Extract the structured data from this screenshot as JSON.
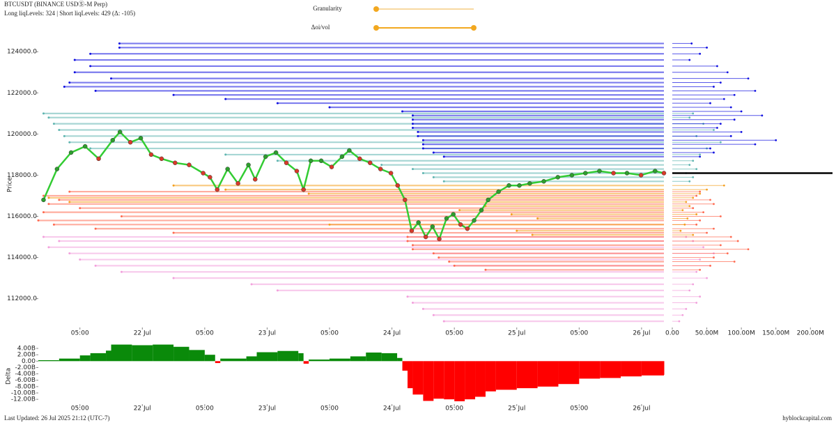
{
  "header": {
    "title": "BTCUSDT (BINANCE USDⓈ-M Perp)",
    "subtitle": "Long liqLevels: 324 | Short liqLevels: 429 (Δ: -105)"
  },
  "controls": [
    {
      "label": "Granularity"
    },
    {
      "label": "Δoi/vol"
    }
  ],
  "chart_data": [
    {
      "type": "line",
      "y_label": "Price",
      "color": "#33cc33",
      "up_color": "#2e9e2e",
      "down_color": "#d83a2a",
      "x": [
        5,
        7.6,
        10.3,
        13,
        15.6,
        18.3,
        19.7,
        21.7,
        23.7,
        25.7,
        27.7,
        30.3,
        33,
        35.7,
        37,
        38.4,
        40.4,
        42.4,
        44.4,
        45.7,
        47.7,
        49.7,
        51.7,
        53.7,
        55,
        56.4,
        58.4,
        60.4,
        62.4,
        63.8,
        65.8,
        67.8,
        69.8,
        71.8,
        73.1,
        74.5,
        75.8,
        77.1,
        78.5,
        79.8,
        81.1,
        82.5,
        83.8,
        85.2,
        86.5,
        87.8,
        89.2,
        90.5,
        92.5,
        94.5,
        96.5,
        98.5,
        101.2,
        103.9,
        106.6,
        109.2,
        111.9,
        114.6,
        117.2,
        119.9,
        122.6,
        124.3
      ],
      "values": [
        116800,
        118300,
        119100,
        119400,
        118800,
        119700,
        120100,
        119600,
        119800,
        119000,
        118800,
        118600,
        118500,
        118100,
        117900,
        117300,
        118300,
        117600,
        118500,
        117800,
        118900,
        119100,
        118600,
        118200,
        117300,
        118700,
        118700,
        118400,
        118900,
        119200,
        118800,
        118600,
        118300,
        118100,
        117500,
        116800,
        115300,
        115700,
        115000,
        115500,
        114900,
        115900,
        116100,
        115600,
        115400,
        115800,
        116300,
        116800,
        117200,
        117500,
        117500,
        117600,
        117700,
        117900,
        118000,
        118100,
        118200,
        118100,
        118100,
        118000,
        118200,
        118100
      ],
      "xlim": [
        4,
        124.3
      ],
      "ylim": [
        110600,
        124550
      ],
      "xticks": [
        {
          "value": 12,
          "label": "05:00"
        },
        {
          "value": 24,
          "label": "22 Jul"
        },
        {
          "value": 36,
          "label": "05:00"
        },
        {
          "value": 48,
          "label": "23 Jul"
        },
        {
          "value": 60,
          "label": "05:00"
        },
        {
          "value": 72,
          "label": "24 Jul"
        },
        {
          "value": 84,
          "label": "05:00"
        },
        {
          "value": 96,
          "label": "25 Jul"
        },
        {
          "value": 108,
          "label": "05:00"
        },
        {
          "value": 120,
          "label": "26 Jul"
        }
      ],
      "yticks": [
        {
          "value": 112000,
          "label": "112000.0"
        },
        {
          "value": 114000,
          "label": "114000.0"
        },
        {
          "value": 116000,
          "label": "116000.0"
        },
        {
          "value": 118000,
          "label": "118000.0"
        },
        {
          "value": 120000,
          "label": "120000.0"
        },
        {
          "value": 122000,
          "label": "122000.0"
        },
        {
          "value": 124000,
          "label": "124000.0"
        }
      ],
      "levels": [
        {
          "color": "#5fb5b0",
          "prices": [
            121000,
            120800,
            120500,
            120200,
            119900,
            119600,
            119300,
            119000,
            118700,
            118500,
            118300,
            118100,
            117900,
            117700
          ],
          "starts": [
            5,
            6,
            7,
            8,
            9,
            10,
            14,
            40,
            50,
            70,
            76,
            78,
            80,
            82
          ],
          "sizes": [
            30000000,
            25000000,
            45000000,
            60000000,
            35000000,
            70000000,
            50000000,
            40000000,
            30000000,
            25000000,
            35000000,
            20000000,
            30000000,
            25000000
          ]
        },
        {
          "color": "#1010e0",
          "prices": [
            124400,
            124200,
            123900,
            123600,
            123300,
            123000,
            122700,
            122500,
            122300,
            122100,
            121900,
            121700,
            121500,
            121300,
            121100,
            120900,
            120700,
            120500,
            120300,
            120100,
            119900,
            119700,
            119500,
            119300,
            119100,
            118900
          ],
          "starts": [
            19.6,
            19.6,
            14,
            11,
            14,
            11,
            18,
            10,
            9,
            15,
            30,
            40,
            50,
            60,
            74,
            76,
            76,
            76,
            76,
            77,
            77,
            78,
            78,
            78,
            80,
            82
          ],
          "sizes": [
            28000000,
            50000000,
            40000000,
            25000000,
            65000000,
            80000000,
            110000000,
            70000000,
            60000000,
            120000000,
            90000000,
            75000000,
            55000000,
            85000000,
            100000000,
            130000000,
            90000000,
            70000000,
            65000000,
            100000000,
            85000000,
            150000000,
            120000000,
            55000000,
            60000000,
            40000000
          ]
        },
        {
          "color": "#f2a0dc",
          "prices": [
            115000,
            114800,
            114500,
            114200,
            113900,
            113600,
            113300,
            113000,
            112700,
            112400,
            112100,
            111800,
            111500,
            111200,
            110900
          ],
          "starts": [
            5,
            8,
            6,
            10,
            12,
            15,
            20,
            30,
            45,
            50,
            75,
            76,
            78,
            80,
            82
          ],
          "sizes": [
            20000000,
            30000000,
            45000000,
            60000000,
            40000000,
            55000000,
            35000000,
            50000000,
            30000000,
            25000000,
            40000000,
            35000000,
            20000000,
            15000000,
            10000000
          ]
        },
        {
          "color": "#ff6a50",
          "prices": [
            117200,
            117000,
            116800,
            116600,
            116400,
            116200,
            116000,
            115800,
            115600,
            115400,
            115200,
            115000,
            114800,
            114600,
            114400,
            114200,
            114000,
            113800,
            113600,
            113400
          ],
          "starts": [
            10,
            5,
            8,
            6,
            12,
            5,
            20,
            4,
            7,
            15,
            30,
            75,
            75,
            76,
            76,
            80,
            81,
            83,
            84,
            90
          ],
          "sizes": [
            40000000,
            35000000,
            55000000,
            60000000,
            30000000,
            45000000,
            70000000,
            40000000,
            35000000,
            60000000,
            50000000,
            85000000,
            95000000,
            70000000,
            110000000,
            80000000,
            60000000,
            90000000,
            55000000,
            40000000
          ]
        },
        {
          "color": "#f4a020",
          "prices": [
            117500,
            117300,
            117100,
            116900,
            116700,
            116500,
            116300,
            116100,
            115900,
            115600,
            115300,
            115100
          ],
          "starts": [
            30,
            40,
            56,
            6,
            10,
            90,
            85,
            95,
            100,
            60,
            96,
            99
          ],
          "sizes": [
            75000000,
            50000000,
            40000000,
            30000000,
            20000000,
            25000000,
            15000000,
            35000000,
            22000000,
            18000000,
            12000000,
            30000000
          ]
        }
      ]
    },
    {
      "type": "bar",
      "xlim": [
        0,
        232000000
      ],
      "xticks": [
        {
          "value": 0,
          "label": "0.00"
        },
        {
          "value": 50000000,
          "label": "50.00M"
        },
        {
          "value": 100000000,
          "label": "100.00M"
        },
        {
          "value": 150000000,
          "label": "150.00M"
        },
        {
          "value": 200000000,
          "label": "200.00M"
        }
      ]
    },
    {
      "type": "area",
      "y_label": "Delta",
      "positive_color": "#0a8a0a",
      "negative_color": "#ff0000",
      "x": [
        4,
        8,
        12,
        14,
        17,
        18,
        22,
        26,
        30,
        33,
        36,
        38,
        39,
        44,
        46,
        50,
        54,
        55,
        56,
        60,
        64,
        67,
        70,
        73,
        74,
        75,
        76,
        78,
        80,
        82,
        84,
        86,
        88,
        90,
        92,
        96,
        100,
        104,
        108,
        112,
        116,
        120,
        124.3
      ],
      "values": [
        0.3,
        0.8,
        1.8,
        2.5,
        3.3,
        5.2,
        5.0,
        5.2,
        4.5,
        3.5,
        2.0,
        -0.6,
        0.8,
        1.5,
        2.8,
        3.2,
        2.5,
        -0.8,
        0.5,
        0.8,
        1.5,
        2.7,
        2.5,
        1.0,
        -3.0,
        -8.5,
        -10.5,
        -12.5,
        -11.8,
        -12.0,
        -12.6,
        -12.0,
        -11.2,
        -9.5,
        -9.0,
        -8.5,
        -8.0,
        -7.2,
        -5.5,
        -5.3,
        -4.8,
        -4.5,
        -4.3
      ],
      "xlim": [
        4,
        124.3
      ],
      "ylim": [
        -13.5,
        6.2
      ],
      "xticks": [
        {
          "value": 12,
          "label": "05:00"
        },
        {
          "value": 24,
          "label": "22 Jul"
        },
        {
          "value": 36,
          "label": "05:00"
        },
        {
          "value": 48,
          "label": "23 Jul"
        },
        {
          "value": 60,
          "label": "05:00"
        },
        {
          "value": 72,
          "label": "24 Jul"
        },
        {
          "value": 84,
          "label": "05:00"
        },
        {
          "value": 96,
          "label": "25 Jul"
        },
        {
          "value": 108,
          "label": "05:00"
        },
        {
          "value": 120,
          "label": "26 Jul"
        }
      ],
      "yticks": [
        {
          "value": -12,
          "label": "-12.00B"
        },
        {
          "value": -10,
          "label": "-10.00B"
        },
        {
          "value": -8,
          "label": "-8.00B"
        },
        {
          "value": -6,
          "label": "-6.00B"
        },
        {
          "value": -4,
          "label": "-4.00B"
        },
        {
          "value": -2,
          "label": "-2.00B"
        },
        {
          "value": 0,
          "label": "0.00"
        },
        {
          "value": 2,
          "label": "2.00B"
        },
        {
          "value": 4,
          "label": "4.00B"
        }
      ]
    }
  ],
  "footer": {
    "updated": "Last Updated: 26 Jul 2025 21:12 (UTC-7)",
    "site": "hyblockcapital.com"
  }
}
